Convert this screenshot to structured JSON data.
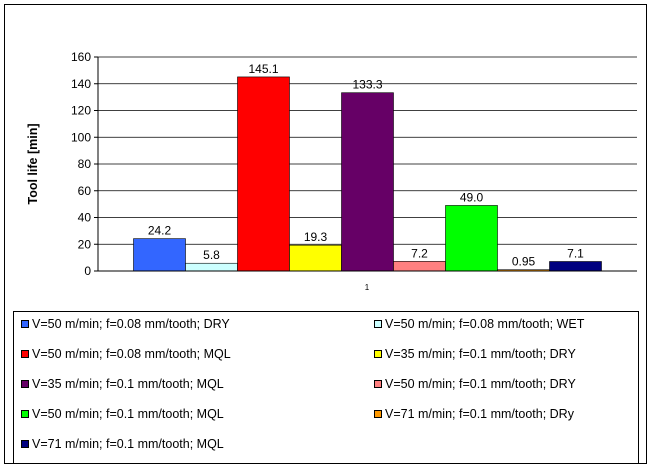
{
  "chart_data": {
    "type": "bar",
    "title": "",
    "xlabel": "",
    "ylabel": "Tool life [min]",
    "categories": [
      "1"
    ],
    "ylim": [
      0,
      160
    ],
    "yticks": [
      0,
      20,
      40,
      60,
      80,
      100,
      120,
      140,
      160
    ],
    "grid": true,
    "legend_position": "bottom",
    "series": [
      {
        "name": "V=50 m/min; f=0.08 mm/tooth; DRY",
        "values": [
          24.2
        ],
        "label": "24.2",
        "color": "#3366ff"
      },
      {
        "name": "V=50 m/min; f=0.08 mm/tooth; WET",
        "values": [
          5.8
        ],
        "label": "5.8",
        "color": "#ccffff"
      },
      {
        "name": "V=50 m/min; f=0.08 mm/tooth; MQL",
        "values": [
          145.1
        ],
        "label": "145.1",
        "color": "#ff0000"
      },
      {
        "name": "V=35 m/min; f=0.1 mm/tooth; DRY",
        "values": [
          19.3
        ],
        "label": "19.3",
        "color": "#ffff00"
      },
      {
        "name": "V=35 m/min; f=0.1 mm/tooth; MQL",
        "values": [
          133.3
        ],
        "label": "133.3",
        "color": "#660066"
      },
      {
        "name": "V=50 m/min; f=0.1 mm/tooth; DRY",
        "values": [
          7.2
        ],
        "label": "7.2",
        "color": "#ff8080"
      },
      {
        "name": "V=50 m/min; f=0.1 mm/tooth; MQL",
        "values": [
          49.0
        ],
        "label": "49.0",
        "color": "#00ff00"
      },
      {
        "name": "V=71 m/min; f=0.1 mm/tooth; DRy",
        "values": [
          0.95
        ],
        "label": "0.95",
        "color": "#ff9900"
      },
      {
        "name": "V=71 m/min; f=0.1 mm/tooth; MQL",
        "values": [
          7.1
        ],
        "label": "7.1",
        "color": "#000080"
      }
    ]
  }
}
